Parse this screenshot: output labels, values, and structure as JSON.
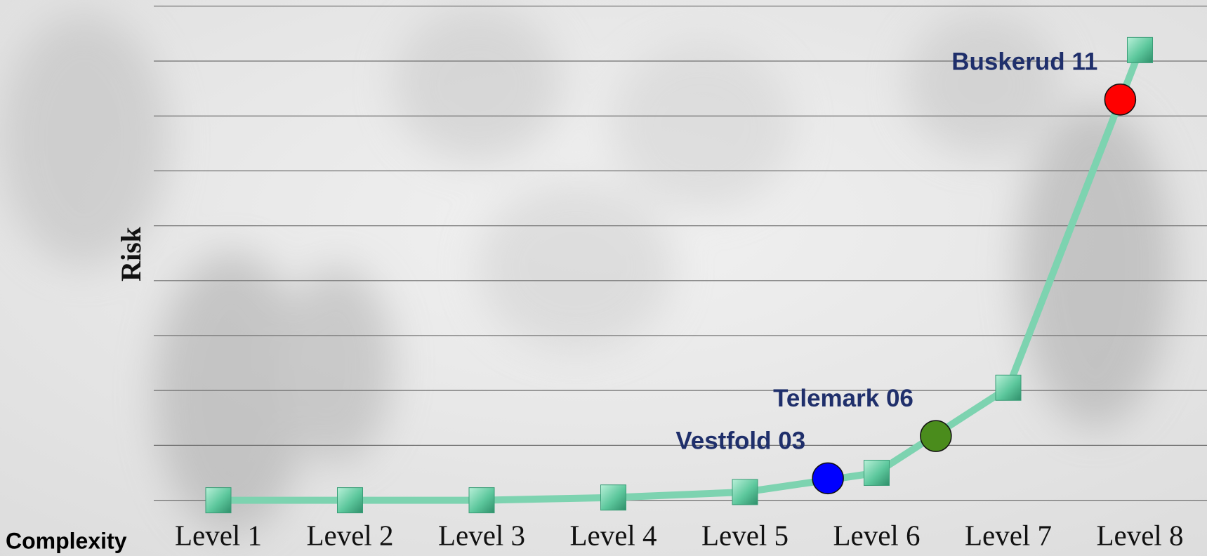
{
  "chart_data": {
    "type": "line",
    "x_label": "Complexity",
    "y_label": "Risk",
    "categories": [
      "Level 1",
      "Level 2",
      "Level 3",
      "Level 4",
      "Level 5",
      "Level 6",
      "Level 7",
      "Level 8"
    ],
    "values": [
      0,
      0,
      0,
      0.05,
      0.15,
      0.5,
      2.05,
      8.2
    ],
    "color": "#7dd3b0",
    "ylim": [
      0,
      9
    ],
    "yticks": [
      0,
      1,
      2,
      3,
      4,
      5,
      6,
      7,
      8,
      9
    ],
    "grid": true,
    "points": [
      {
        "label": "Vestfold 03",
        "x": 4.63,
        "y": 0.4,
        "color": "#0000ff"
      },
      {
        "label": "Telemark 06",
        "x": 5.45,
        "y": 1.17,
        "color": "#4a8c1c"
      },
      {
        "label": "Buskerud 11",
        "x": 6.85,
        "y": 7.3,
        "color": "#ff0000"
      }
    ]
  }
}
